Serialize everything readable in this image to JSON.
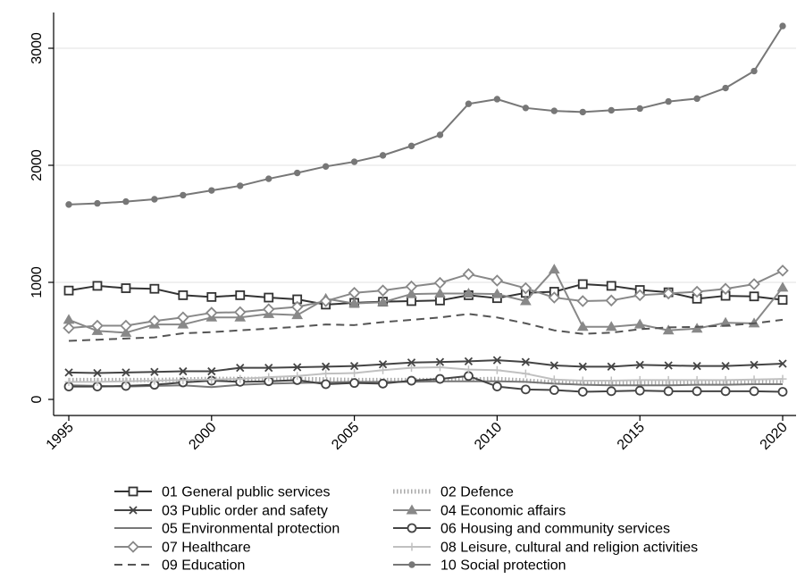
{
  "chart_data": {
    "type": "line",
    "title": "",
    "xlabel": "",
    "ylabel": "",
    "xlim": [
      1995,
      2020
    ],
    "ylim": [
      0,
      3200
    ],
    "grid": "horizontal",
    "legend_position": "bottom",
    "x_ticks": [
      1995,
      2000,
      2005,
      2010,
      2015,
      2020
    ],
    "y_ticks": [
      0,
      1000,
      2000,
      3000
    ],
    "x": [
      1995,
      1996,
      1997,
      1998,
      1999,
      2000,
      2001,
      2002,
      2003,
      2004,
      2005,
      2006,
      2007,
      2008,
      2009,
      2010,
      2011,
      2012,
      2013,
      2014,
      2015,
      2016,
      2017,
      2018,
      2019,
      2020
    ],
    "series": [
      {
        "id": "s01",
        "name": "01 General public services",
        "color": "#333333",
        "marker": "square",
        "dash": "",
        "values": [
          930,
          970,
          950,
          945,
          890,
          875,
          890,
          870,
          855,
          810,
          825,
          835,
          840,
          845,
          890,
          865,
          910,
          920,
          985,
          970,
          935,
          915,
          860,
          885,
          880,
          850
        ]
      },
      {
        "id": "s02",
        "name": "02 Defence",
        "color": "#aaaaaa",
        "marker": "none",
        "dash": "dotted",
        "values": [
          165,
          165,
          165,
          165,
          170,
          175,
          175,
          175,
          175,
          170,
          165,
          165,
          165,
          165,
          170,
          175,
          160,
          145,
          140,
          140,
          140,
          140,
          145,
          150,
          150,
          145
        ]
      },
      {
        "id": "s03",
        "name": "03 Public order and safety",
        "color": "#444444",
        "marker": "x",
        "dash": "",
        "values": [
          230,
          225,
          230,
          235,
          240,
          240,
          270,
          270,
          275,
          280,
          285,
          300,
          315,
          320,
          325,
          335,
          320,
          290,
          280,
          280,
          295,
          290,
          285,
          285,
          295,
          305
        ]
      },
      {
        "id": "s04",
        "name": "04 Economic affairs",
        "color": "#888888",
        "marker": "triangle",
        "dash": "",
        "values": [
          680,
          585,
          570,
          640,
          640,
          700,
          700,
          730,
          720,
          860,
          820,
          830,
          900,
          905,
          905,
          900,
          840,
          1110,
          620,
          620,
          640,
          590,
          605,
          655,
          650,
          955
        ]
      },
      {
        "id": "s05",
        "name": "05 Environmental protection",
        "color": "#777777",
        "marker": "none",
        "dash": "",
        "values": [
          120,
          115,
          110,
          115,
          120,
          105,
          125,
          135,
          140,
          145,
          150,
          150,
          150,
          155,
          155,
          155,
          150,
          135,
          125,
          120,
          120,
          120,
          125,
          125,
          130,
          130
        ]
      },
      {
        "id": "s06",
        "name": "06 Housing and community services",
        "color": "#444444",
        "marker": "circle",
        "dash": "",
        "values": [
          110,
          110,
          115,
          125,
          145,
          160,
          150,
          155,
          165,
          130,
          140,
          135,
          160,
          175,
          200,
          110,
          85,
          80,
          65,
          70,
          75,
          70,
          70,
          70,
          70,
          65
        ]
      },
      {
        "id": "s07",
        "name": "07 Healthcare",
        "color": "#888888",
        "marker": "diamond",
        "dash": "",
        "values": [
          610,
          630,
          630,
          670,
          700,
          740,
          745,
          770,
          790,
          840,
          910,
          930,
          965,
          995,
          1070,
          1015,
          950,
          870,
          840,
          845,
          890,
          905,
          920,
          945,
          985,
          1100
        ]
      },
      {
        "id": "s08",
        "name": "08 Leisure, cultural and religion activities",
        "color": "#c0c0c0",
        "marker": "plus",
        "dash": "",
        "values": [
          150,
          150,
          155,
          160,
          165,
          170,
          175,
          190,
          200,
          220,
          225,
          250,
          270,
          275,
          255,
          250,
          220,
          170,
          160,
          160,
          165,
          165,
          165,
          165,
          170,
          175
        ]
      },
      {
        "id": "s09",
        "name": "09 Education",
        "color": "#555555",
        "marker": "none",
        "dash": "dashed",
        "values": [
          500,
          510,
          520,
          530,
          565,
          575,
          590,
          605,
          620,
          640,
          635,
          660,
          680,
          700,
          730,
          700,
          650,
          590,
          560,
          570,
          600,
          615,
          620,
          630,
          650,
          680
        ]
      },
      {
        "id": "s10",
        "name": "10 Social protection",
        "color": "#777777",
        "marker": "dot",
        "dash": "",
        "values": [
          1665,
          1675,
          1690,
          1710,
          1745,
          1785,
          1825,
          1885,
          1935,
          1990,
          2030,
          2085,
          2165,
          2260,
          2525,
          2565,
          2490,
          2465,
          2455,
          2470,
          2485,
          2545,
          2570,
          2660,
          2805,
          3190
        ]
      }
    ]
  }
}
